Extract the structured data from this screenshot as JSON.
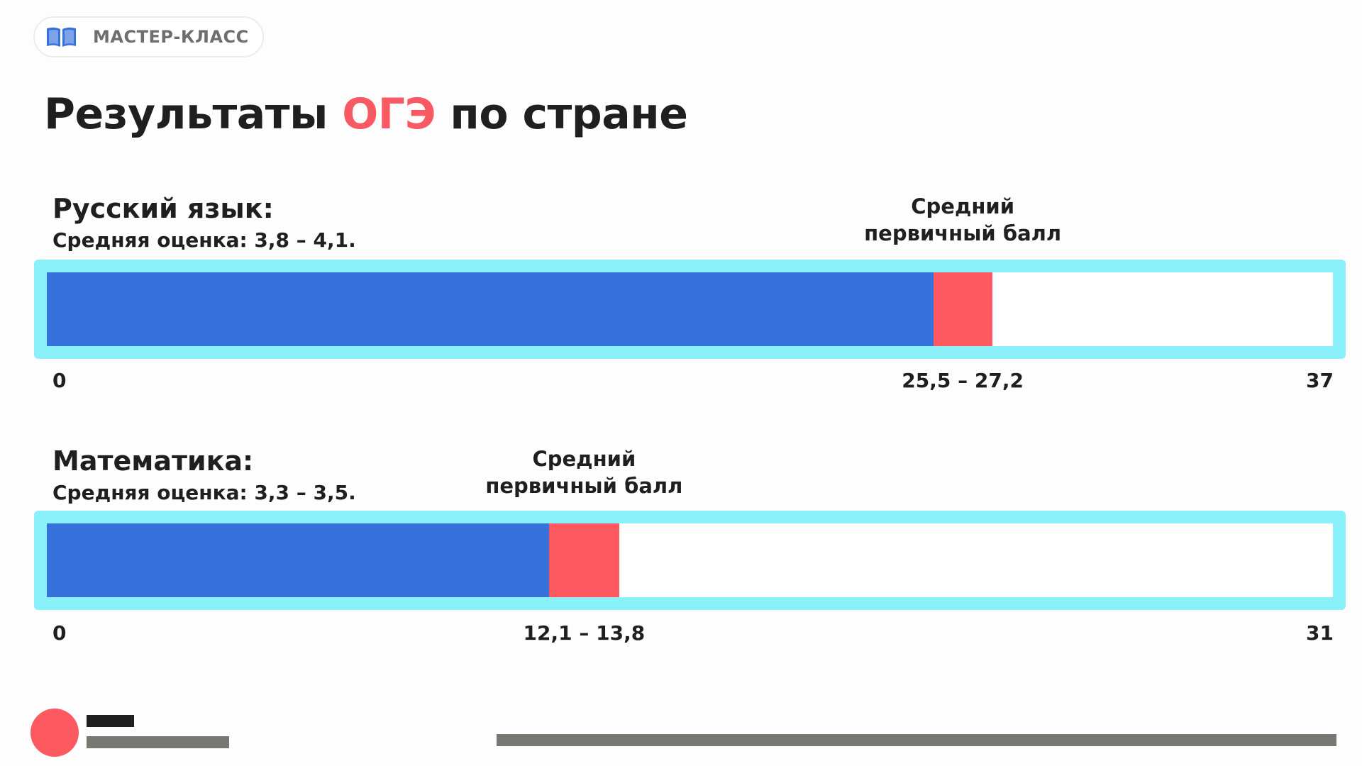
{
  "header": {
    "badge_icon": "open-book-icon",
    "badge_label": "МАСТЕР-КЛАСС"
  },
  "title": {
    "before": "Результаты ",
    "accent": "ОГЭ",
    "after": " по стране"
  },
  "colors": {
    "accent": "#f75a63",
    "bar_fill": "#3771db",
    "bar_range": "#fd5961",
    "bar_frame": "#8af1fb"
  },
  "chart_data": [
    {
      "type": "bar",
      "orientation": "horizontal",
      "subject": "Русский язык:",
      "grade_text": "Средняя оценка: 3,8 – 4,1.",
      "avg_label_line1": "Средний",
      "avg_label_line2": "первичный балл",
      "min": 0,
      "max": 37,
      "min_label": "0",
      "max_label": "37",
      "range_low": 25.5,
      "range_high": 27.2,
      "range_label": "25,5 – 27,2"
    },
    {
      "type": "bar",
      "orientation": "horizontal",
      "subject": "Математика:",
      "grade_text": "Средняя оценка: 3,3 – 3,5.",
      "avg_label_line1": "Средний",
      "avg_label_line2": "первичный балл",
      "min": 0,
      "max": 31,
      "min_label": "0",
      "max_label": "31",
      "range_low": 12.1,
      "range_high": 13.8,
      "range_label": "12,1 – 13,8"
    }
  ]
}
